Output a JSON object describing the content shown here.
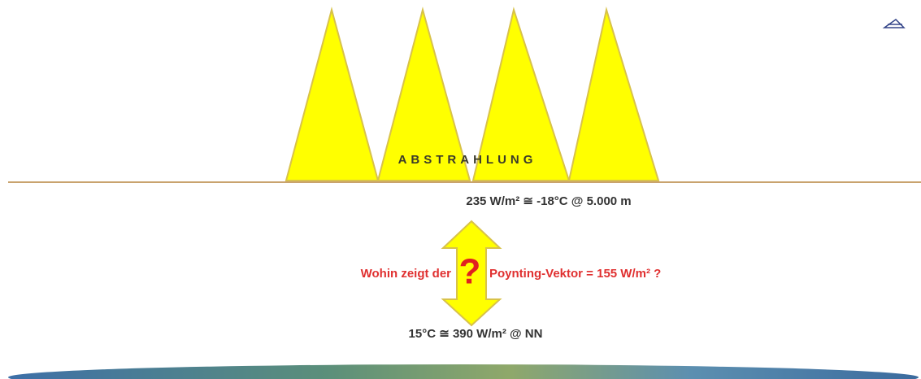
{
  "emission_label": "ABSTRAHLUNG",
  "top_label": "235 W/m² ≅ -18°C @ 5.000 m",
  "question_left": "Wohin zeigt der",
  "question_mark": "?",
  "question_right": "Poynting-Vektor = 155 W/m² ?",
  "bottom_label": "15°C ≅ 390 W/m² @ NN"
}
